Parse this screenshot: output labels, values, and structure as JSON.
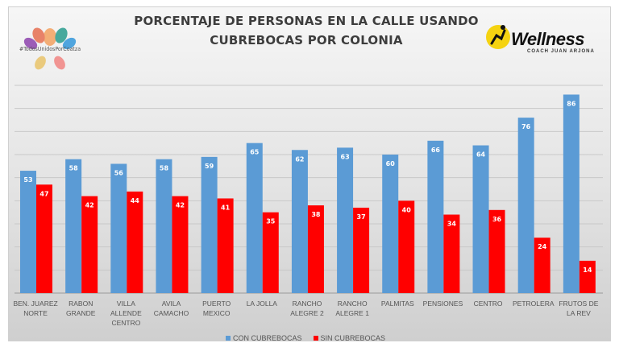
{
  "chart_data": {
    "type": "bar",
    "title": "PORCENTAJE DE PERSONAS EN LA CALLE USANDO CUBREBOCAS POR COLONIA",
    "title_lines": [
      "PORCENTAJE DE PERSONAS EN LA CALLE USANDO",
      "CUBREBOCAS POR COLONIA"
    ],
    "categories": [
      [
        "BEN. JUAREZ",
        "NORTE"
      ],
      [
        "RABON",
        "GRANDE"
      ],
      [
        "VILLA",
        "ALLENDE",
        "CENTRO"
      ],
      [
        "AVILA",
        "CAMACHO"
      ],
      [
        "PUERTO",
        "MEXICO"
      ],
      [
        "LA JOLLA"
      ],
      [
        "RANCHO",
        "ALEGRE 2"
      ],
      [
        "RANCHO",
        "ALEGRE 1"
      ],
      [
        "PALMITAS"
      ],
      [
        "PENSIONES"
      ],
      [
        "CENTRO"
      ],
      [
        "PETROLERA"
      ],
      [
        "FRUTOS DE",
        "LA REV"
      ]
    ],
    "series": [
      {
        "name": "CON CUBREBOCAS",
        "color": "#5b9bd5",
        "values": [
          53,
          58,
          56,
          58,
          59,
          65,
          62,
          63,
          60,
          66,
          64,
          76,
          86
        ]
      },
      {
        "name": "SIN CUBREBOCAS",
        "color": "#ff0000",
        "values": [
          47,
          42,
          44,
          42,
          41,
          35,
          38,
          37,
          40,
          34,
          36,
          24,
          14
        ]
      }
    ],
    "ylim": [
      0,
      90
    ],
    "grid": true,
    "data_labels": true,
    "legend_position": "bottom"
  },
  "badge": {
    "text": "#TodosUnidosPorCoatza"
  },
  "brand": {
    "name": "Wellness",
    "subtitle": "COACH JUAN ARJONA"
  }
}
